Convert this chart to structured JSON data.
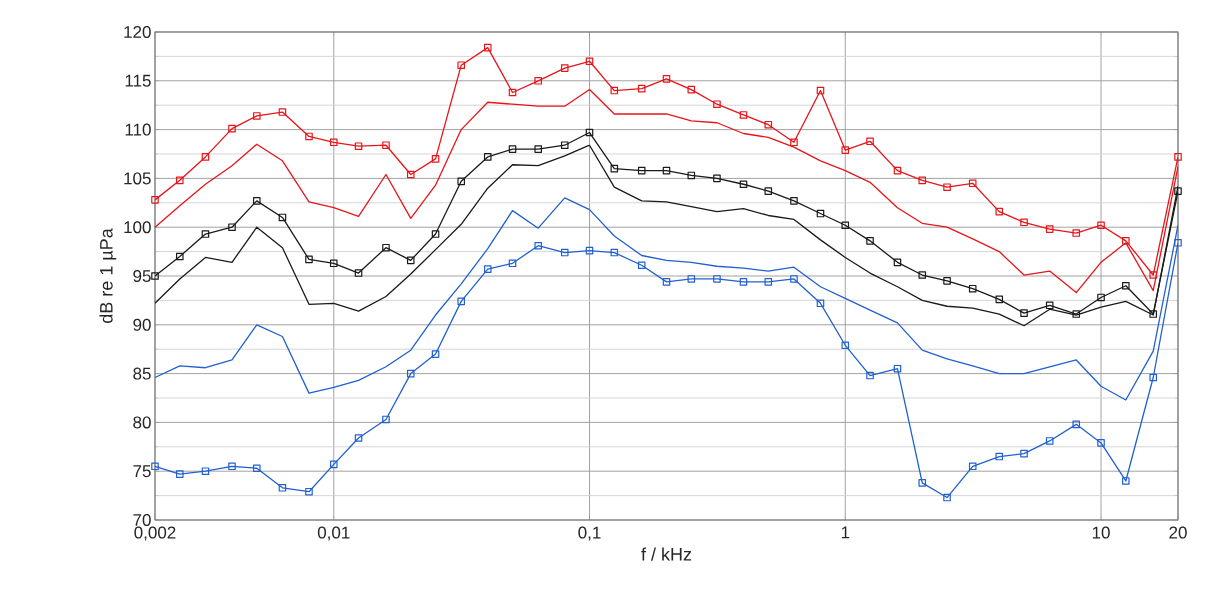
{
  "chart_data": {
    "type": "line",
    "xlabel": "f / kHz",
    "ylabel": "dB re 1 µPa",
    "log": "x",
    "grid": true,
    "line_style": "solid",
    "x": [
      0.002,
      0.0025,
      0.00315,
      0.004,
      0.005,
      0.0063,
      0.008,
      0.01,
      0.0125,
      0.016,
      0.02,
      0.025,
      0.0315,
      0.04,
      0.05,
      0.063,
      0.08,
      0.1,
      0.125,
      0.16,
      0.2,
      0.25,
      0.315,
      0.4,
      0.5,
      0.63,
      0.8,
      1,
      1.25,
      1.6,
      2,
      2.5,
      3.15,
      4,
      5,
      6.3,
      8,
      10,
      12.5,
      16,
      20
    ],
    "xlim": [
      0.002,
      20
    ],
    "ylim": [
      70,
      120
    ],
    "xticks": [
      {
        "value": 0.002,
        "label": "0,002"
      },
      {
        "value": 0.01,
        "label": "0,01"
      },
      {
        "value": 0.1,
        "label": "0,1"
      },
      1,
      10,
      20
    ],
    "yticks": [
      70,
      75,
      80,
      85,
      90,
      95,
      100,
      105,
      110,
      115,
      120
    ],
    "series": [
      {
        "color": "#e8141a",
        "marker": "square",
        "values": [
          102.8,
          104.8,
          107.2,
          110.1,
          111.4,
          111.8,
          109.3,
          108.7,
          108.3,
          108.4,
          105.4,
          107.0,
          116.6,
          118.4,
          113.8,
          115.0,
          116.3,
          117.0,
          114.0,
          114.2,
          115.2,
          114.1,
          112.6,
          111.5,
          110.5,
          108.7,
          114.0,
          107.9,
          108.8,
          105.8,
          104.8,
          104.1,
          104.5,
          101.6,
          100.5,
          99.8,
          99.4,
          100.2,
          98.6,
          95.1,
          107.2
        ]
      },
      {
        "color": "#e8141a",
        "marker": "none",
        "values": [
          100.0,
          102.2,
          104.4,
          106.3,
          108.5,
          106.8,
          102.6,
          102.0,
          101.1,
          105.4,
          100.9,
          104.3,
          110.0,
          112.8,
          112.6,
          112.4,
          112.4,
          114.1,
          111.6,
          111.6,
          111.6,
          110.9,
          110.7,
          109.6,
          109.2,
          108.2,
          106.8,
          105.8,
          104.6,
          102.0,
          100.4,
          100.0,
          98.8,
          97.5,
          95.1,
          95.5,
          93.3,
          96.4,
          98.4,
          93.5,
          106.2
        ]
      },
      {
        "color": "#1a1a1a",
        "marker": "square",
        "values": [
          95.0,
          97.0,
          99.3,
          100.0,
          102.7,
          101.0,
          96.7,
          96.3,
          95.3,
          97.9,
          96.6,
          99.3,
          104.7,
          107.2,
          108.0,
          108.0,
          108.4,
          109.7,
          106.0,
          105.8,
          105.8,
          105.3,
          105.0,
          104.4,
          103.7,
          102.7,
          101.4,
          100.2,
          98.6,
          96.4,
          95.1,
          94.5,
          93.7,
          92.6,
          91.2,
          92.0,
          91.1,
          92.8,
          94.0,
          91.1,
          103.7
        ]
      },
      {
        "color": "#1a1a1a",
        "marker": "none",
        "values": [
          92.2,
          94.7,
          96.9,
          96.4,
          100.0,
          97.9,
          92.1,
          92.2,
          91.4,
          92.9,
          95.2,
          97.7,
          100.3,
          104.0,
          106.4,
          106.3,
          107.3,
          108.4,
          104.1,
          102.7,
          102.6,
          102.1,
          101.6,
          101.9,
          101.2,
          100.8,
          98.7,
          96.9,
          95.3,
          93.9,
          92.5,
          91.9,
          91.7,
          91.1,
          89.9,
          91.6,
          91.0,
          91.8,
          92.4,
          91.0,
          104.2
        ]
      },
      {
        "color": "#2060d0",
        "marker": "none",
        "values": [
          84.6,
          85.8,
          85.6,
          86.4,
          90.0,
          88.8,
          83.0,
          83.6,
          84.3,
          85.7,
          87.4,
          91.0,
          94.2,
          97.8,
          101.7,
          99.9,
          103.0,
          101.8,
          99.1,
          97.1,
          96.6,
          96.4,
          96.0,
          95.8,
          95.5,
          95.9,
          93.9,
          92.7,
          91.5,
          90.2,
          87.4,
          86.5,
          85.8,
          85.0,
          85.0,
          85.7,
          86.4,
          83.7,
          82.3,
          87.3,
          100.2
        ]
      },
      {
        "color": "#2060d0",
        "marker": "square",
        "values": [
          75.5,
          74.7,
          75.0,
          75.5,
          75.3,
          73.3,
          72.9,
          75.7,
          78.4,
          80.3,
          85.0,
          87.0,
          92.4,
          95.7,
          96.3,
          98.1,
          97.4,
          97.6,
          97.4,
          96.1,
          94.4,
          94.7,
          94.7,
          94.4,
          94.4,
          94.7,
          92.2,
          87.9,
          84.8,
          85.5,
          73.8,
          72.3,
          75.5,
          76.5,
          76.8,
          78.1,
          79.8,
          77.9,
          74.0,
          84.6,
          98.4
        ]
      }
    ]
  }
}
